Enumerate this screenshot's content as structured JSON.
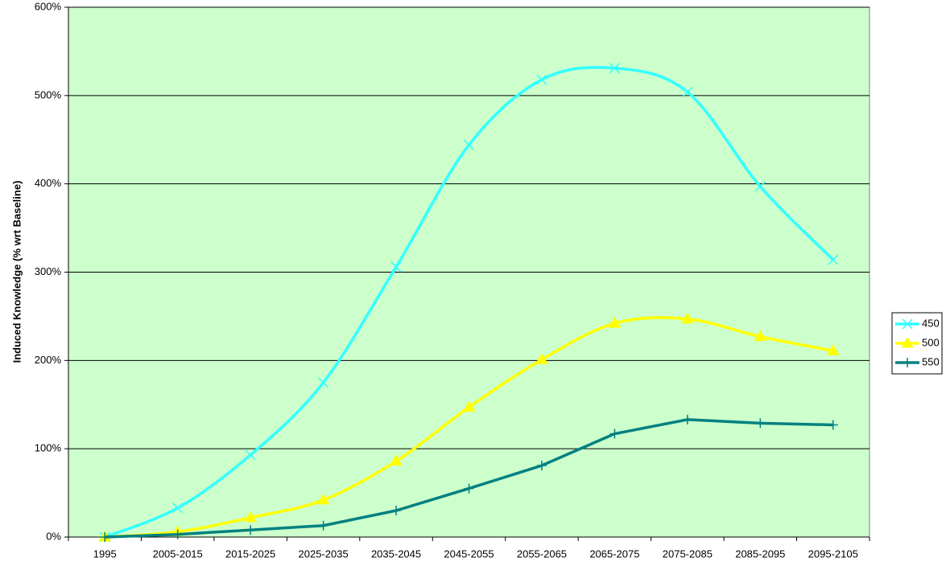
{
  "chart_data": {
    "type": "line",
    "y_label": "Induced Knowledge (% wrt Baseline)",
    "categories": [
      "1995",
      "2005-2015",
      "2015-2025",
      "2025-2035",
      "2035-2045",
      "2045-2055",
      "2055-2065",
      "2065-2075",
      "2075-2085",
      "2085-2095",
      "2095-2105"
    ],
    "series": [
      {
        "name": "450",
        "color": "#33ffff",
        "marker": "x",
        "smooth": true,
        "values": [
          0,
          33,
          93,
          175,
          306,
          444,
          518,
          531,
          504,
          397,
          314
        ]
      },
      {
        "name": "500",
        "color": "#ffff00",
        "marker": "triangle",
        "smooth": true,
        "values": [
          0,
          6,
          22,
          42,
          86,
          147,
          201,
          242,
          247,
          227,
          211
        ]
      },
      {
        "name": "550",
        "color": "#008080",
        "marker": "plus",
        "smooth": false,
        "values": [
          0,
          3,
          8,
          13,
          30,
          55,
          81,
          117,
          133,
          129,
          127
        ]
      }
    ],
    "ylim": [
      0,
      600
    ],
    "yticks": [
      {
        "value": 0,
        "label": "0%"
      },
      {
        "value": 100,
        "label": "100%"
      },
      {
        "value": 200,
        "label": "200%"
      },
      {
        "value": 300,
        "label": "300%"
      },
      {
        "value": 400,
        "label": "400%"
      },
      {
        "value": 500,
        "label": "500%"
      },
      {
        "value": 600,
        "label": "600%"
      }
    ],
    "grid": true,
    "legend": "right",
    "plot_background": "#ccffcc"
  }
}
